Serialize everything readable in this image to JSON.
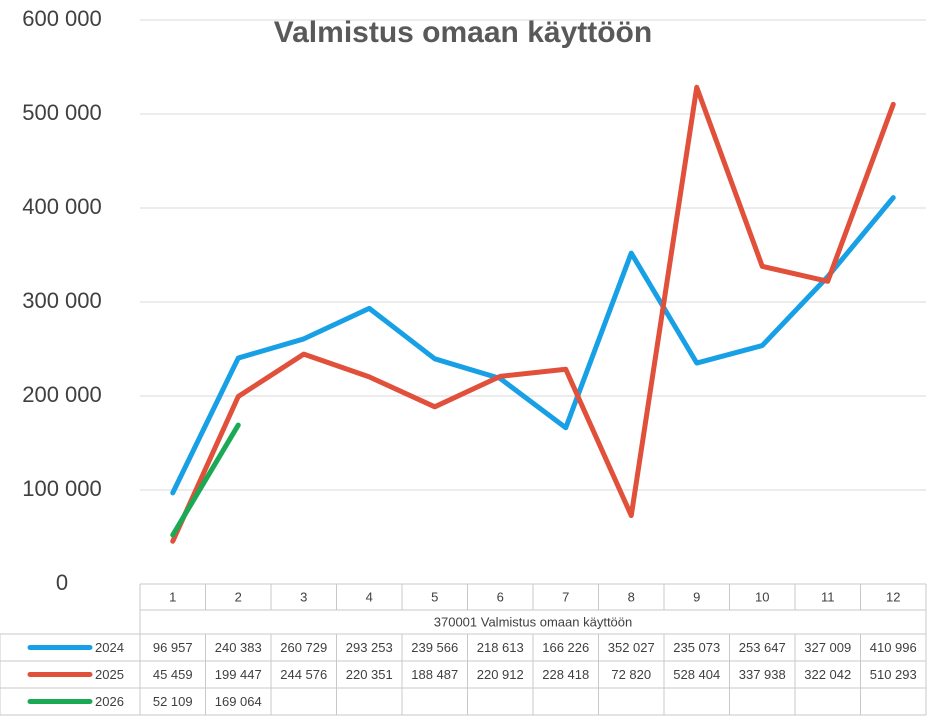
{
  "chart_data": {
    "type": "line",
    "title": "Valmistus omaan käyttöön",
    "x_label": "370001  Valmistus omaan käyttöön",
    "categories": [
      "1",
      "2",
      "3",
      "4",
      "5",
      "6",
      "7",
      "8",
      "9",
      "10",
      "11",
      "12"
    ],
    "series": [
      {
        "name": "2024",
        "color": "#18a0e6",
        "values": [
          96957,
          240383,
          260729,
          293253,
          239566,
          218613,
          166226,
          352027,
          235073,
          253647,
          327009,
          410996
        ],
        "value_labels": [
          "96 957",
          "240 383",
          "260 729",
          "293 253",
          "239 566",
          "218 613",
          "166 226",
          "352 027",
          "235 073",
          "253 647",
          "327 009",
          "410 996"
        ]
      },
      {
        "name": "2025",
        "color": "#e0503a",
        "values": [
          45459,
          199447,
          244576,
          220351,
          188487,
          220912,
          228418,
          72820,
          528404,
          337938,
          322042,
          510293
        ],
        "value_labels": [
          "45 459",
          "199 447",
          "244 576",
          "220 351",
          "188 487",
          "220 912",
          "228 418",
          "72 820",
          "528 404",
          "337 938",
          "322 042",
          "510 293"
        ]
      },
      {
        "name": "2026",
        "color": "#1aaa55",
        "values": [
          52109,
          169064,
          null,
          null,
          null,
          null,
          null,
          null,
          null,
          null,
          null,
          null
        ],
        "value_labels": [
          "52 109",
          "169 064",
          null,
          null,
          null,
          null,
          null,
          null,
          null,
          null,
          null,
          null
        ]
      }
    ],
    "ylim": [
      0,
      600000
    ],
    "yticks": [
      0,
      {
        "value": 100000,
        "label": "100 000"
      },
      {
        "value": 200000,
        "label": "200 000"
      },
      {
        "value": 300000,
        "label": "300 000"
      },
      {
        "value": 400000,
        "label": "400 000"
      },
      {
        "value": 500000,
        "label": "500 000"
      },
      {
        "value": 600000,
        "label": "600 000"
      }
    ],
    "grid": true
  }
}
